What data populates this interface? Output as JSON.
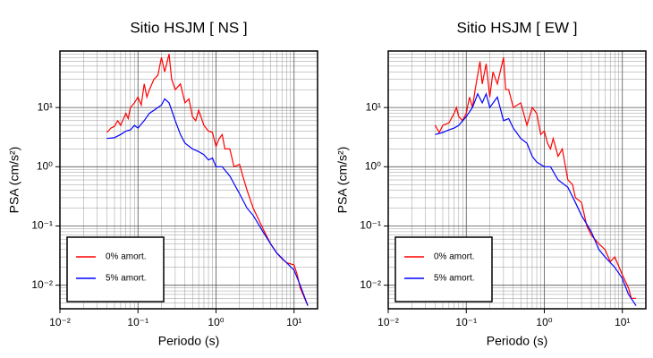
{
  "chart_data": [
    {
      "type": "line",
      "title": "Sitio HSJM [ NS ]",
      "x_label": "Periodo (s)",
      "y_label": "PSA (cm/s²)",
      "xscale": "log",
      "yscale": "log",
      "grid": true,
      "legend": "lower left",
      "xlim": [
        0.01,
        20
      ],
      "ylim": [
        0.004,
        90
      ],
      "xticks": [
        {
          "value": 0.01,
          "label": "10⁻²"
        },
        {
          "value": 0.1,
          "label": "10⁻¹"
        },
        {
          "value": 1,
          "label": "10⁰"
        },
        {
          "value": 10,
          "label": "10¹"
        }
      ],
      "yticks": [
        {
          "value": 0.01,
          "label": "10⁻²"
        },
        {
          "value": 0.1,
          "label": "10⁻¹"
        },
        {
          "value": 1,
          "label": "10⁰"
        },
        {
          "value": 10,
          "label": "10¹"
        }
      ],
      "series": [
        {
          "name": "0% amort.",
          "color": "#ff0000",
          "x": [
            0.04,
            0.045,
            0.05,
            0.055,
            0.06,
            0.07,
            0.075,
            0.08,
            0.09,
            0.1,
            0.11,
            0.12,
            0.13,
            0.14,
            0.16,
            0.18,
            0.2,
            0.22,
            0.25,
            0.27,
            0.3,
            0.35,
            0.4,
            0.45,
            0.5,
            0.55,
            0.6,
            0.7,
            0.8,
            0.9,
            1.0,
            1.1,
            1.2,
            1.3,
            1.5,
            1.7,
            2.0,
            2.2,
            2.5,
            3,
            3.5,
            4,
            5,
            6,
            7,
            8,
            10,
            11,
            12,
            13,
            15
          ],
          "values": [
            3.8,
            4.5,
            4.8,
            6,
            5,
            8,
            6.5,
            10,
            12,
            15,
            11,
            25,
            15,
            20,
            30,
            35,
            70,
            40,
            80,
            30,
            20,
            25,
            12,
            14,
            7,
            6,
            9,
            5,
            4,
            3.8,
            2.2,
            3,
            3.5,
            2,
            2,
            1,
            1.1,
            0.7,
            0.4,
            0.2,
            0.13,
            0.09,
            0.05,
            0.035,
            0.028,
            0.024,
            0.022,
            0.015,
            0.009,
            0.007,
            0.0045
          ]
        },
        {
          "name": "5% amort.",
          "color": "#0000ff",
          "x": [
            0.04,
            0.05,
            0.06,
            0.07,
            0.08,
            0.09,
            0.1,
            0.12,
            0.14,
            0.16,
            0.18,
            0.2,
            0.22,
            0.25,
            0.3,
            0.35,
            0.4,
            0.5,
            0.6,
            0.7,
            0.8,
            0.9,
            1,
            1.2,
            1.5,
            2,
            2.5,
            3,
            4,
            5,
            6,
            8,
            10,
            12,
            15
          ],
          "values": [
            3,
            3.1,
            3.5,
            4,
            4.2,
            5,
            4.5,
            6,
            8,
            9,
            10,
            11,
            14,
            12,
            6,
            3.5,
            2.5,
            2,
            1.8,
            1.6,
            1.3,
            1.4,
            1.0,
            1.0,
            0.7,
            0.35,
            0.2,
            0.15,
            0.08,
            0.05,
            0.035,
            0.024,
            0.018,
            0.01,
            0.0045
          ]
        }
      ]
    },
    {
      "type": "line",
      "title": "Sitio HSJM [ EW ]",
      "x_label": "Periodo (s)",
      "y_label": "PSA (cm/s²)",
      "xscale": "log",
      "yscale": "log",
      "grid": true,
      "legend": "lower left",
      "xlim": [
        0.01,
        20
      ],
      "ylim": [
        0.004,
        90
      ],
      "xticks": [
        {
          "value": 0.01,
          "label": "10⁻²"
        },
        {
          "value": 0.1,
          "label": "10⁻¹"
        },
        {
          "value": 1,
          "label": "10⁰"
        },
        {
          "value": 10,
          "label": "10¹"
        }
      ],
      "yticks": [
        {
          "value": 0.01,
          "label": "10⁻²"
        },
        {
          "value": 0.1,
          "label": "10⁻¹"
        },
        {
          "value": 1,
          "label": "10⁰"
        },
        {
          "value": 10,
          "label": "10¹"
        }
      ],
      "series": [
        {
          "name": "0% amort.",
          "color": "#ff0000",
          "x": [
            0.04,
            0.045,
            0.05,
            0.06,
            0.07,
            0.075,
            0.08,
            0.09,
            0.1,
            0.11,
            0.12,
            0.13,
            0.15,
            0.16,
            0.18,
            0.2,
            0.22,
            0.25,
            0.3,
            0.32,
            0.35,
            0.4,
            0.5,
            0.6,
            0.7,
            0.8,
            0.9,
            1.0,
            1.1,
            1.2,
            1.3,
            1.5,
            1.7,
            2.0,
            2.3,
            2.5,
            3,
            3.5,
            4,
            5,
            6,
            7,
            8,
            10,
            12,
            13,
            15
          ],
          "values": [
            5,
            3.8,
            5,
            5.5,
            8,
            10,
            7,
            6,
            8,
            15,
            10,
            20,
            60,
            25,
            55,
            15,
            40,
            25,
            70,
            20,
            20,
            10,
            12,
            5,
            10,
            8,
            3.5,
            4,
            2.5,
            2,
            3,
            1.5,
            2,
            0.6,
            0.5,
            0.3,
            0.25,
            0.1,
            0.07,
            0.05,
            0.04,
            0.025,
            0.03,
            0.015,
            0.009,
            0.006,
            0.006
          ]
        },
        {
          "name": "5% amort.",
          "color": "#0000ff",
          "x": [
            0.04,
            0.05,
            0.06,
            0.07,
            0.08,
            0.09,
            0.1,
            0.12,
            0.14,
            0.16,
            0.18,
            0.2,
            0.25,
            0.3,
            0.35,
            0.4,
            0.5,
            0.6,
            0.7,
            0.8,
            1,
            1.2,
            1.5,
            2,
            2.5,
            3,
            4,
            5,
            6,
            8,
            10,
            12,
            15
          ],
          "values": [
            3.5,
            3.8,
            4.2,
            4.5,
            5,
            6,
            7,
            10,
            17,
            12,
            17,
            10,
            15,
            6,
            6.5,
            4.5,
            3,
            2.5,
            1.5,
            1.2,
            1,
            1.0,
            0.6,
            0.45,
            0.25,
            0.15,
            0.08,
            0.04,
            0.03,
            0.02,
            0.013,
            0.007,
            0.0045
          ]
        }
      ]
    }
  ]
}
